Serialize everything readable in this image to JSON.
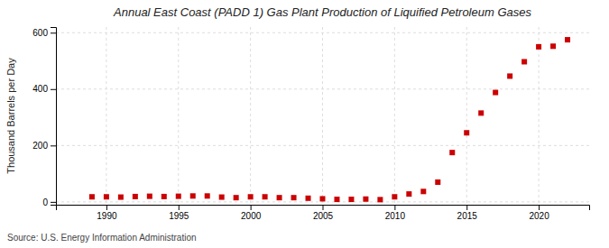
{
  "chart_data": {
    "type": "scatter",
    "title": "Annual East Coast (PADD 1) Gas Plant Production of Liquified Petroleum Gases",
    "ylabel": "Thousand Barrels per Day",
    "source": "Source: U.S. Energy Information Administration",
    "x": [
      1989,
      1990,
      1991,
      1992,
      1993,
      1994,
      1995,
      1996,
      1997,
      1998,
      1999,
      2000,
      2001,
      2002,
      2003,
      2004,
      2005,
      2006,
      2007,
      2008,
      2009,
      2010,
      2011,
      2012,
      2013,
      2014,
      2015,
      2016,
      2017,
      2018,
      2019,
      2020,
      2021,
      2022
    ],
    "values": [
      18,
      18,
      17,
      19,
      20,
      19,
      20,
      21,
      21,
      17,
      15,
      18,
      18,
      15,
      15,
      13,
      11,
      9,
      9,
      10,
      8,
      18,
      28,
      37,
      70,
      175,
      245,
      315,
      388,
      446,
      497,
      550,
      552,
      575
    ],
    "color": "#cc0000",
    "marker": "square",
    "xlim": [
      1986.5,
      2023.5
    ],
    "ylim": [
      -10,
      620
    ],
    "xticks": [
      1990,
      1995,
      2000,
      2005,
      2010,
      2015,
      2020
    ],
    "yticks": [
      0,
      200,
      400,
      600
    ],
    "grid": true
  }
}
